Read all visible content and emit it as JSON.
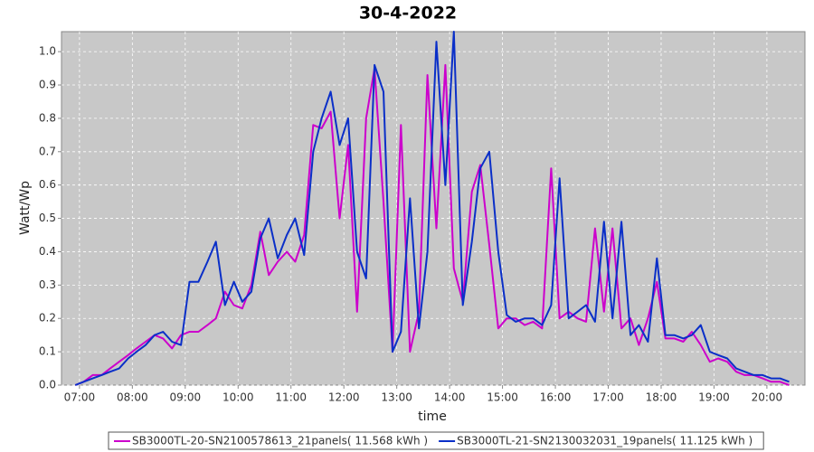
{
  "chart_data": {
    "type": "line",
    "title": "30-4-2022",
    "x_label": "time",
    "y_label": "Watt/Wp",
    "xlim": [
      6.66,
      20.72
    ],
    "ylim": [
      0,
      1.06
    ],
    "xticks": [
      {
        "value": 7,
        "label": "07:00"
      },
      {
        "value": 8,
        "label": "08:00"
      },
      {
        "value": 9,
        "label": "09:00"
      },
      {
        "value": 10,
        "label": "10:00"
      },
      {
        "value": 11,
        "label": "11:00"
      },
      {
        "value": 12,
        "label": "12:00"
      },
      {
        "value": 13,
        "label": "13:00"
      },
      {
        "value": 14,
        "label": "14:00"
      },
      {
        "value": 15,
        "label": "15:00"
      },
      {
        "value": 16,
        "label": "16:00"
      },
      {
        "value": 17,
        "label": "17:00"
      },
      {
        "value": 18,
        "label": "18:00"
      },
      {
        "value": 19,
        "label": "19:00"
      },
      {
        "value": 20,
        "label": "20:00"
      }
    ],
    "yticks": [
      {
        "value": 0,
        "label": "0.0"
      },
      0.1,
      0.2,
      0.3,
      0.4,
      0.5,
      0.6,
      0.7,
      0.8,
      0.9,
      {
        "value": 1,
        "label": "1.0"
      }
    ],
    "grid": true,
    "legend": "bottom",
    "x": [
      6.92,
      7.08,
      7.25,
      7.42,
      7.58,
      7.75,
      7.92,
      8.08,
      8.25,
      8.42,
      8.58,
      8.75,
      8.92,
      9.08,
      9.25,
      9.42,
      9.58,
      9.75,
      9.92,
      10.08,
      10.25,
      10.42,
      10.58,
      10.75,
      10.92,
      11.08,
      11.25,
      11.42,
      11.58,
      11.75,
      11.92,
      12.08,
      12.25,
      12.42,
      12.58,
      12.75,
      12.92,
      13.08,
      13.25,
      13.42,
      13.58,
      13.75,
      13.92,
      14.08,
      14.25,
      14.42,
      14.58,
      14.75,
      14.92,
      15.08,
      15.25,
      15.42,
      15.58,
      15.75,
      15.92,
      16.08,
      16.25,
      16.42,
      16.58,
      16.75,
      16.92,
      17.08,
      17.25,
      17.42,
      17.58,
      17.75,
      17.92,
      18.08,
      18.25,
      18.42,
      18.58,
      18.75,
      18.92,
      19.08,
      19.25,
      19.42,
      19.58,
      19.75,
      19.92,
      20.08,
      20.25,
      20.42
    ],
    "series": [
      {
        "name": "SB3000TL-20-SN2100578613_21panels( 11.568 kWh )",
        "color": "#cc00cc",
        "values": [
          0,
          0.01,
          0.03,
          0.03,
          0.05,
          0.07,
          0.09,
          0.11,
          0.13,
          0.15,
          0.14,
          0.11,
          0.15,
          0.16,
          0.16,
          0.18,
          0.2,
          0.28,
          0.24,
          0.23,
          0.3,
          0.46,
          0.33,
          0.37,
          0.4,
          0.37,
          0.45,
          0.78,
          0.77,
          0.82,
          0.5,
          0.72,
          0.22,
          0.8,
          0.95,
          0.55,
          0.1,
          0.78,
          0.1,
          0.22,
          0.93,
          0.47,
          0.96,
          0.35,
          0.25,
          0.58,
          0.66,
          0.42,
          0.17,
          0.2,
          0.2,
          0.18,
          0.19,
          0.17,
          0.65,
          0.2,
          0.22,
          0.2,
          0.19,
          0.47,
          0.22,
          0.47,
          0.17,
          0.2,
          0.12,
          0.2,
          0.31,
          0.14,
          0.14,
          0.13,
          0.16,
          0.12,
          0.07,
          0.08,
          0.07,
          0.04,
          0.03,
          0.03,
          0.02,
          0.01,
          0.01,
          0
        ]
      },
      {
        "name": "SB3000TL-21-SN2130032031_19panels( 11.125 kWh )",
        "color": "#0a2fc8",
        "values": [
          0,
          0.01,
          0.02,
          0.03,
          0.04,
          0.05,
          0.08,
          0.1,
          0.12,
          0.15,
          0.16,
          0.13,
          0.12,
          0.31,
          0.31,
          0.37,
          0.43,
          0.24,
          0.31,
          0.25,
          0.28,
          0.44,
          0.5,
          0.38,
          0.45,
          0.5,
          0.39,
          0.7,
          0.8,
          0.88,
          0.72,
          0.8,
          0.4,
          0.32,
          0.96,
          0.88,
          0.1,
          0.16,
          0.56,
          0.17,
          0.4,
          1.03,
          0.6,
          1.06,
          0.24,
          0.43,
          0.65,
          0.7,
          0.4,
          0.21,
          0.19,
          0.2,
          0.2,
          0.18,
          0.24,
          0.62,
          0.2,
          0.22,
          0.24,
          0.19,
          0.49,
          0.2,
          0.49,
          0.15,
          0.18,
          0.13,
          0.38,
          0.15,
          0.15,
          0.14,
          0.15,
          0.18,
          0.1,
          0.09,
          0.08,
          0.05,
          0.04,
          0.03,
          0.03,
          0.02,
          0.02,
          0.01
        ]
      }
    ]
  }
}
